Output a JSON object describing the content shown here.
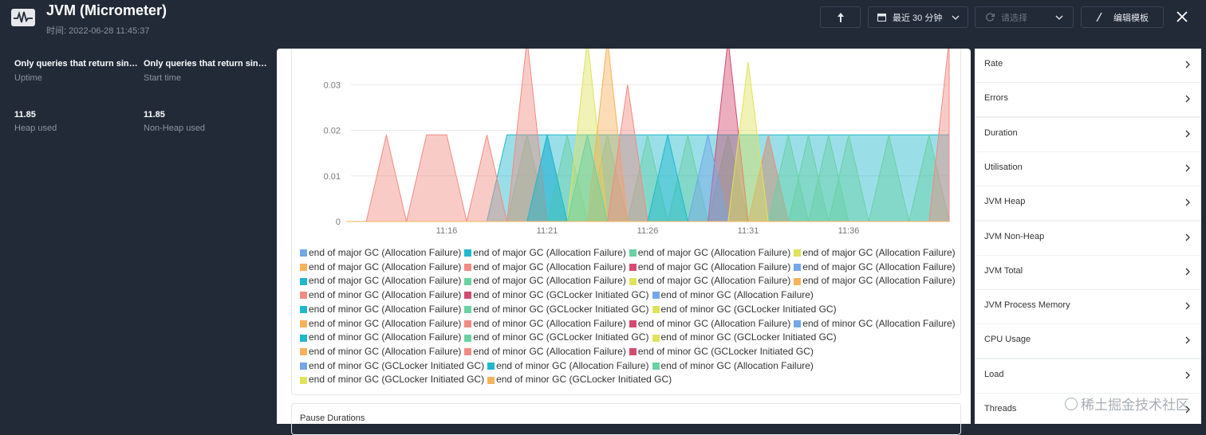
{
  "header": {
    "title": "JVM (Micrometer)",
    "time": "时间: 2022-06-28 11:45:37",
    "range": "最近 30 分钟",
    "select": "请选择",
    "edit": "编辑模板"
  },
  "stats": [
    {
      "value": "Only queries that return sin…",
      "label": "Uptime"
    },
    {
      "value": "Only queries that return sin…",
      "label": "Start time"
    },
    {
      "value": "11.85",
      "label": "Heap used"
    },
    {
      "value": "11.85",
      "label": "Non-Heap used"
    }
  ],
  "chart_data": {
    "type": "area",
    "categories": [
      null,
      null,
      null,
      null,
      null,
      "11:16",
      null,
      null,
      null,
      null,
      "11:21",
      null,
      null,
      null,
      null,
      "11:26",
      null,
      null,
      null,
      null,
      "11:31",
      null,
      null,
      null,
      null,
      "11:36",
      null,
      null,
      null,
      null,
      null
    ],
    "ylim": [
      0,
      0.04
    ],
    "yticks": [
      0,
      0.01,
      0.02,
      0.03
    ],
    "grid": true,
    "series": [
      {
        "name": "end of major GC (Allocation Failure)",
        "color": "#73a7e6",
        "values": [
          0,
          0,
          0,
          0,
          0,
          0,
          0,
          0,
          0,
          0,
          0.019,
          0,
          0,
          0,
          0,
          0,
          0,
          0,
          0,
          0,
          0,
          0,
          0,
          0,
          0,
          0,
          0,
          0,
          0,
          0,
          0
        ]
      },
      {
        "name": "end of major GC (Allocation Failure)",
        "color": "#1fb8cc",
        "values": [
          0,
          0,
          0,
          0,
          0,
          0,
          0,
          0,
          0.019,
          0.019,
          0.019,
          0.019,
          0.019,
          0.019,
          0.019,
          0.019,
          0.019,
          0.019,
          0.019,
          0.019,
          0.019,
          0.019,
          0.019,
          0.019,
          0.019,
          0.019,
          0.019,
          0.019,
          0.019,
          0.019,
          0.019
        ]
      },
      {
        "name": "end of major GC (Allocation Failure)",
        "color": "#6ad1a3",
        "values": [
          0,
          0,
          0,
          0,
          0,
          0,
          0,
          0,
          0,
          0.019,
          0,
          0.019,
          0,
          0.019,
          0,
          0.019,
          0,
          0.019,
          0,
          0.019,
          0,
          0.019,
          0,
          0.019,
          0,
          0.019,
          0,
          0.019,
          0,
          0.019,
          0
        ]
      },
      {
        "name": "end of major GC (Allocation Failure)",
        "color": "#e0e35a",
        "values": [
          0,
          0,
          0,
          0,
          0,
          0,
          0,
          0,
          0,
          0,
          0,
          0,
          0.04,
          0,
          0,
          0,
          0,
          0,
          0,
          0,
          0,
          0,
          0,
          0,
          0,
          0,
          0,
          0,
          0,
          0,
          0
        ]
      },
      {
        "name": "end of major GC (Allocation Failure)",
        "color": "#f7b25a",
        "values": [
          0,
          0,
          0,
          0,
          0,
          0,
          0,
          0,
          0,
          0,
          0,
          0,
          0,
          0.04,
          0,
          0,
          0,
          0,
          0,
          0,
          0,
          0,
          0,
          0,
          0,
          0,
          0,
          0,
          0,
          0,
          0
        ]
      },
      {
        "name": "end of major GC (Allocation Failure)",
        "color": "#f28b82",
        "values": [
          0,
          0,
          0.019,
          0,
          0.019,
          0.019,
          0,
          0.019,
          0,
          0.04,
          0,
          0,
          0,
          0,
          0.03,
          0,
          0,
          0,
          0,
          0,
          0,
          0.019,
          0,
          0,
          0,
          0,
          0,
          0,
          0,
          0,
          0.04
        ]
      },
      {
        "name": "end of major GC (Allocation Failure)",
        "color": "#d44a72",
        "values": [
          0,
          0,
          0,
          0,
          0,
          0,
          0,
          0,
          0,
          0,
          0,
          0,
          0,
          0,
          0,
          0,
          0,
          0,
          0,
          0.04,
          0,
          0,
          0,
          0,
          0,
          0,
          0,
          0,
          0,
          0,
          0
        ]
      },
      {
        "name": "end of major GC (Allocation Failure)",
        "color": "#73a7e6",
        "values": [
          0,
          0,
          0,
          0,
          0,
          0,
          0,
          0,
          0,
          0,
          0,
          0,
          0,
          0,
          0,
          0,
          0,
          0,
          0.019,
          0,
          0,
          0,
          0,
          0,
          0,
          0,
          0,
          0,
          0,
          0,
          0
        ]
      },
      {
        "name": "end of major GC (Allocation Failure)",
        "color": "#1fb8cc",
        "values": [
          0,
          0,
          0,
          0,
          0,
          0,
          0,
          0,
          0,
          0,
          0.019,
          0,
          0,
          0,
          0,
          0,
          0.019,
          0,
          0,
          0,
          0,
          0,
          0,
          0,
          0,
          0,
          0,
          0,
          0,
          0,
          0
        ]
      },
      {
        "name": "end of major GC (Allocation Failure)",
        "color": "#6ad1a3",
        "values": [
          0,
          0,
          0,
          0,
          0,
          0,
          0,
          0,
          0,
          0,
          0,
          0,
          0.019,
          0,
          0,
          0,
          0,
          0,
          0,
          0,
          0,
          0,
          0.019,
          0,
          0.019,
          0,
          0,
          0,
          0,
          0,
          0
        ]
      },
      {
        "name": "end of major GC (Allocation Failure)",
        "color": "#e0e35a",
        "values": [
          0,
          0,
          0,
          0,
          0,
          0,
          0,
          0,
          0,
          0,
          0,
          0,
          0,
          0,
          0,
          0,
          0,
          0,
          0,
          0,
          0.035,
          0,
          0,
          0,
          0,
          0,
          0,
          0,
          0,
          0,
          0
        ]
      },
      {
        "name": "end of major GC (Allocation Failure)",
        "color": "#f7b25a",
        "values": [
          0,
          0,
          0,
          0,
          0,
          0,
          0,
          0,
          0,
          0,
          0,
          0,
          0,
          0,
          0,
          0,
          0,
          0,
          0,
          0,
          0,
          0,
          0,
          0,
          0,
          0,
          0,
          0,
          0,
          0,
          0
        ]
      },
      {
        "name": "end of minor GC (Allocation Failure)",
        "color": "#f28b82",
        "values": [
          0,
          0,
          0,
          0,
          0,
          0,
          0,
          0,
          0,
          0,
          0,
          0,
          0,
          0,
          0,
          0,
          0,
          0,
          0,
          0,
          0,
          0,
          0,
          0,
          0,
          0,
          0,
          0,
          0,
          0,
          0
        ]
      },
      {
        "name": "end of minor GC (GCLocker Initiated GC)",
        "color": "#d44a72",
        "values": [
          0,
          0,
          0,
          0,
          0,
          0,
          0,
          0,
          0,
          0,
          0,
          0,
          0,
          0,
          0,
          0,
          0,
          0,
          0,
          0,
          0,
          0,
          0,
          0,
          0,
          0,
          0,
          0,
          0,
          0,
          0
        ]
      },
      {
        "name": "end of minor GC (Allocation Failure)",
        "color": "#73a7e6",
        "values": [
          0,
          0,
          0,
          0,
          0,
          0,
          0,
          0,
          0,
          0,
          0,
          0,
          0,
          0,
          0,
          0,
          0,
          0,
          0,
          0,
          0,
          0,
          0,
          0,
          0,
          0,
          0,
          0,
          0,
          0,
          0
        ]
      },
      {
        "name": "end of minor GC (Allocation Failure)",
        "color": "#1fb8cc",
        "values": [
          0,
          0,
          0,
          0,
          0,
          0,
          0,
          0,
          0,
          0,
          0,
          0,
          0,
          0,
          0,
          0,
          0,
          0,
          0,
          0,
          0,
          0,
          0,
          0,
          0,
          0,
          0,
          0,
          0,
          0,
          0
        ]
      },
      {
        "name": "end of minor GC (GCLocker Initiated GC)",
        "color": "#6ad1a3",
        "values": [
          0,
          0,
          0,
          0,
          0,
          0,
          0,
          0,
          0,
          0,
          0,
          0,
          0,
          0,
          0,
          0,
          0,
          0,
          0,
          0,
          0,
          0,
          0,
          0,
          0,
          0,
          0,
          0,
          0,
          0,
          0
        ]
      },
      {
        "name": "end of minor GC (GCLocker Initiated GC)",
        "color": "#e0e35a",
        "values": [
          0,
          0,
          0,
          0,
          0,
          0,
          0,
          0,
          0,
          0,
          0,
          0,
          0,
          0,
          0,
          0,
          0,
          0,
          0,
          0,
          0,
          0,
          0,
          0,
          0,
          0,
          0,
          0,
          0,
          0,
          0
        ]
      },
      {
        "name": "end of minor GC (Allocation Failure)",
        "color": "#f7b25a",
        "values": [
          0,
          0,
          0,
          0,
          0,
          0,
          0,
          0,
          0,
          0,
          0,
          0,
          0,
          0,
          0,
          0,
          0,
          0,
          0,
          0,
          0,
          0,
          0,
          0,
          0,
          0,
          0,
          0,
          0,
          0,
          0
        ]
      },
      {
        "name": "end of minor GC (Allocation Failure)",
        "color": "#f28b82",
        "values": [
          0,
          0,
          0,
          0,
          0,
          0,
          0,
          0,
          0,
          0,
          0,
          0,
          0,
          0,
          0,
          0,
          0,
          0,
          0,
          0,
          0,
          0,
          0,
          0,
          0,
          0,
          0,
          0,
          0,
          0,
          0
        ]
      },
      {
        "name": "end of minor GC (Allocation Failure)",
        "color": "#d44a72",
        "values": [
          0,
          0,
          0,
          0,
          0,
          0,
          0,
          0,
          0,
          0,
          0,
          0,
          0,
          0,
          0,
          0,
          0,
          0,
          0,
          0,
          0,
          0,
          0,
          0,
          0,
          0,
          0,
          0,
          0,
          0,
          0
        ]
      },
      {
        "name": "end of minor GC (Allocation Failure)",
        "color": "#73a7e6",
        "values": [
          0,
          0,
          0,
          0,
          0,
          0,
          0,
          0,
          0,
          0,
          0,
          0,
          0,
          0,
          0,
          0,
          0,
          0,
          0,
          0,
          0,
          0,
          0,
          0,
          0,
          0,
          0,
          0,
          0,
          0,
          0
        ]
      },
      {
        "name": "end of minor GC (Allocation Failure)",
        "color": "#1fb8cc",
        "values": [
          0,
          0,
          0,
          0,
          0,
          0,
          0,
          0,
          0,
          0,
          0,
          0,
          0,
          0,
          0,
          0,
          0,
          0,
          0,
          0,
          0,
          0,
          0,
          0,
          0,
          0,
          0,
          0,
          0,
          0,
          0
        ]
      },
      {
        "name": "end of minor GC (GCLocker Initiated GC)",
        "color": "#6ad1a3",
        "values": [
          0,
          0,
          0,
          0,
          0,
          0,
          0,
          0,
          0,
          0,
          0,
          0,
          0,
          0,
          0,
          0,
          0,
          0,
          0,
          0,
          0,
          0,
          0,
          0,
          0,
          0,
          0,
          0,
          0,
          0,
          0
        ]
      },
      {
        "name": "end of minor GC (GCLocker Initiated GC)",
        "color": "#e0e35a",
        "values": [
          0,
          0,
          0,
          0,
          0,
          0,
          0,
          0,
          0,
          0,
          0,
          0,
          0,
          0,
          0,
          0,
          0,
          0,
          0,
          0,
          0,
          0,
          0,
          0,
          0,
          0,
          0,
          0,
          0,
          0,
          0
        ]
      },
      {
        "name": "end of minor GC (Allocation Failure)",
        "color": "#f7b25a",
        "values": [
          0,
          0,
          0,
          0,
          0,
          0,
          0,
          0,
          0,
          0,
          0,
          0,
          0,
          0,
          0,
          0,
          0,
          0,
          0,
          0,
          0,
          0,
          0,
          0,
          0,
          0,
          0,
          0,
          0,
          0,
          0
        ]
      },
      {
        "name": "end of minor GC (Allocation Failure)",
        "color": "#f28b82",
        "values": [
          0,
          0,
          0,
          0,
          0,
          0,
          0,
          0,
          0,
          0,
          0,
          0,
          0,
          0,
          0,
          0,
          0,
          0,
          0,
          0,
          0,
          0,
          0,
          0,
          0,
          0,
          0,
          0,
          0,
          0,
          0
        ]
      },
      {
        "name": "end of minor GC (GCLocker Initiated GC)",
        "color": "#d44a72",
        "values": [
          0,
          0,
          0,
          0,
          0,
          0,
          0,
          0,
          0,
          0,
          0,
          0,
          0,
          0,
          0,
          0,
          0,
          0,
          0,
          0,
          0,
          0,
          0,
          0,
          0,
          0,
          0,
          0,
          0,
          0,
          0
        ]
      },
      {
        "name": "end of minor GC (GCLocker Initiated GC)",
        "color": "#73a7e6",
        "values": [
          0,
          0,
          0,
          0,
          0,
          0,
          0,
          0,
          0,
          0,
          0,
          0,
          0,
          0,
          0,
          0,
          0,
          0,
          0,
          0,
          0,
          0,
          0,
          0,
          0,
          0,
          0,
          0,
          0,
          0,
          0
        ]
      },
      {
        "name": "end of minor GC (Allocation Failure)",
        "color": "#1fb8cc",
        "values": [
          0,
          0,
          0,
          0,
          0,
          0,
          0,
          0,
          0,
          0,
          0,
          0,
          0,
          0,
          0,
          0,
          0,
          0,
          0,
          0,
          0,
          0,
          0,
          0,
          0,
          0,
          0,
          0,
          0,
          0,
          0
        ]
      },
      {
        "name": "end of minor GC (Allocation Failure)",
        "color": "#6ad1a3",
        "values": [
          0,
          0,
          0,
          0,
          0,
          0,
          0,
          0,
          0,
          0,
          0,
          0,
          0,
          0,
          0,
          0,
          0,
          0,
          0,
          0,
          0,
          0,
          0,
          0,
          0,
          0,
          0,
          0,
          0,
          0,
          0
        ]
      },
      {
        "name": "end of minor GC (GCLocker Initiated GC)",
        "color": "#e0e35a",
        "values": [
          0,
          0,
          0,
          0,
          0,
          0,
          0,
          0,
          0,
          0,
          0,
          0,
          0,
          0,
          0,
          0,
          0,
          0,
          0,
          0,
          0,
          0,
          0,
          0,
          0,
          0,
          0,
          0,
          0,
          0,
          0
        ]
      },
      {
        "name": "end of minor GC (GCLocker Initiated GC)",
        "color": "#f7b25a",
        "values": [
          0,
          0,
          0,
          0,
          0,
          0,
          0,
          0,
          0,
          0,
          0,
          0,
          0,
          0,
          0,
          0,
          0,
          0,
          0,
          0,
          0,
          0,
          0,
          0,
          0,
          0,
          0,
          0,
          0,
          0,
          0
        ]
      }
    ]
  },
  "panel2": {
    "title": "Pause Durations"
  },
  "menu": [
    "Rate",
    "Errors",
    "Duration",
    "Utilisation",
    "JVM Heap",
    "JVM Non-Heap",
    "JVM Total",
    "JVM Process Memory",
    "CPU Usage",
    "Load",
    "Threads"
  ],
  "watermark": "稀土掘金技术社区"
}
